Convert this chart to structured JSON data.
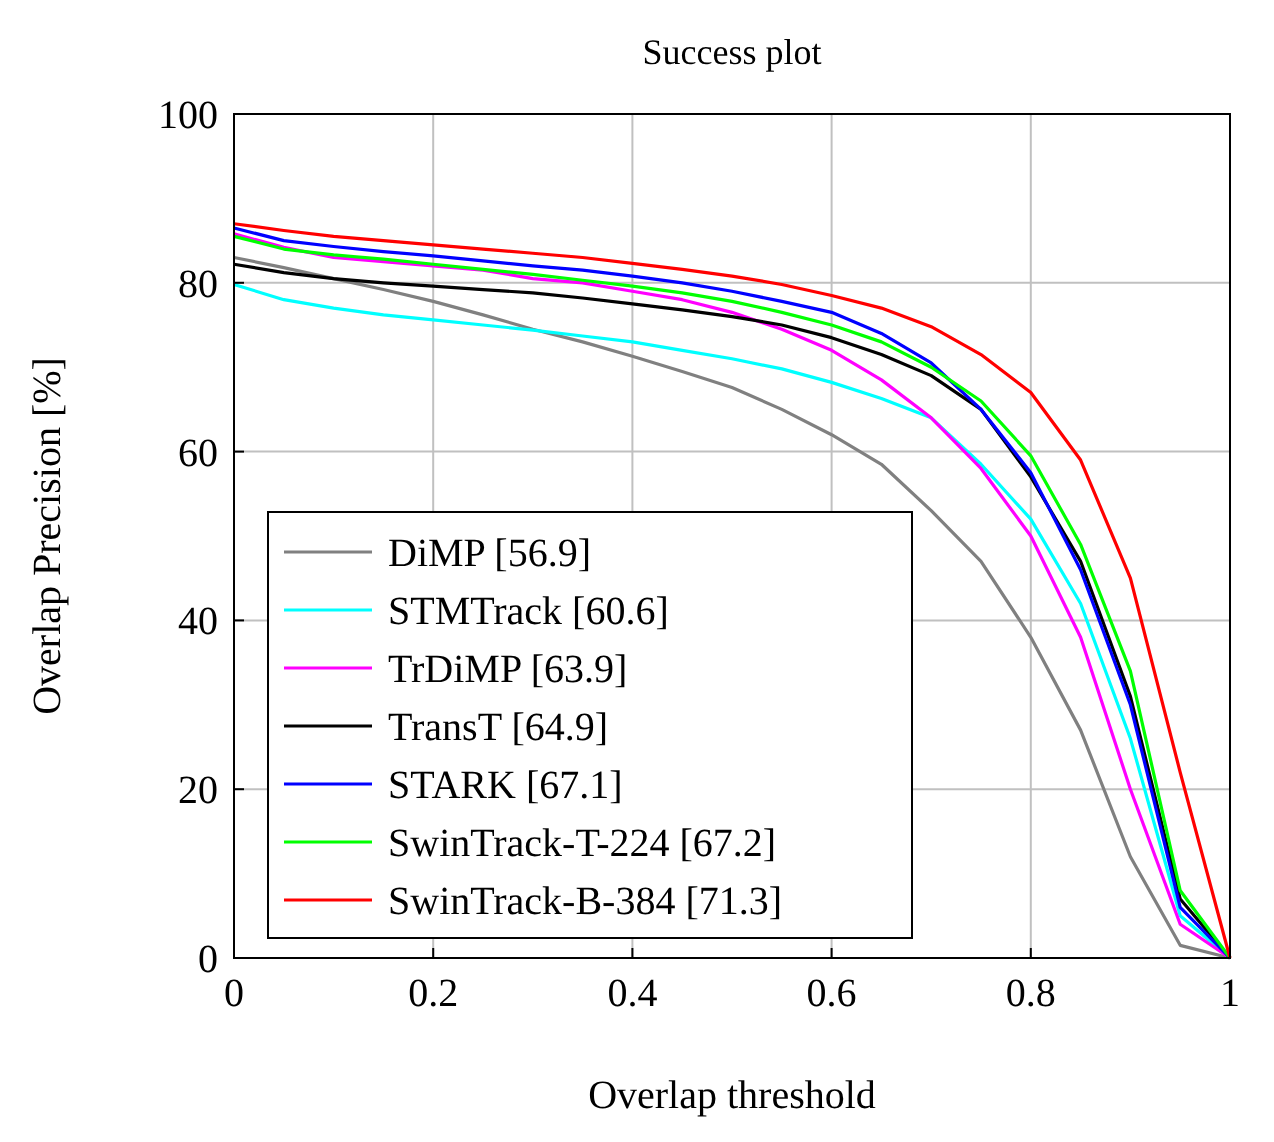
{
  "chart_data": {
    "type": "line",
    "title": "Success plot",
    "xlabel": "Overlap threshold",
    "ylabel": "Overlap Precision [%]",
    "x": [
      0,
      0.05,
      0.1,
      0.15,
      0.2,
      0.25,
      0.3,
      0.35,
      0.4,
      0.45,
      0.5,
      0.55,
      0.6,
      0.65,
      0.7,
      0.75,
      0.8,
      0.85,
      0.9,
      0.95,
      1
    ],
    "xlim": [
      0,
      1
    ],
    "xticks": [
      0,
      0.2,
      0.4,
      0.6,
      0.8,
      1
    ],
    "ylim": [
      0,
      100
    ],
    "yticks": [
      0,
      20,
      40,
      60,
      80,
      100
    ],
    "grid": true,
    "legend": "bottom left",
    "marker": "none",
    "line_style": "solid",
    "series": [
      {
        "name": "DiMP [56.9]",
        "color": "#808080",
        "values": [
          83,
          81.8,
          80.5,
          79.2,
          77.8,
          76.2,
          74.5,
          73,
          71.3,
          69.5,
          67.6,
          65,
          62,
          58.5,
          53,
          47,
          38,
          27,
          12,
          1.5,
          0
        ]
      },
      {
        "name": "STMTrack [60.6]",
        "color": "#00ffff",
        "values": [
          79.8,
          78,
          77,
          76.2,
          75.6,
          75,
          74.4,
          73.7,
          73,
          72,
          71,
          69.8,
          68.2,
          66.3,
          64,
          58.5,
          52,
          42,
          26,
          5,
          0
        ]
      },
      {
        "name": "TrDiMP [63.9]",
        "color": "#ff00ff",
        "values": [
          85.8,
          84.2,
          83,
          82.5,
          82,
          81.5,
          80.5,
          80,
          79,
          78,
          76.5,
          74.5,
          72,
          68.5,
          64,
          58,
          50,
          38,
          20,
          4,
          0
        ]
      },
      {
        "name": "TransT [64.9]",
        "color": "#000000",
        "values": [
          82.2,
          81.2,
          80.5,
          80,
          79.6,
          79.2,
          78.8,
          78.2,
          77.5,
          76.8,
          76,
          75,
          73.5,
          71.5,
          69,
          65,
          57,
          47,
          31,
          7,
          0
        ]
      },
      {
        "name": "STARK [67.1]",
        "color": "#0000ff",
        "values": [
          86.5,
          85,
          84.3,
          83.7,
          83.2,
          82.6,
          82,
          81.5,
          80.8,
          80,
          79,
          77.8,
          76.5,
          74,
          70.5,
          65,
          57.5,
          46,
          30,
          6,
          0
        ]
      },
      {
        "name": "SwinTrack-T-224 [67.2]",
        "color": "#00ff00",
        "values": [
          85.5,
          84,
          83.3,
          82.8,
          82.2,
          81.6,
          81,
          80.3,
          79.6,
          78.8,
          77.8,
          76.5,
          75,
          73,
          70,
          66,
          59.5,
          49,
          34,
          8,
          0
        ]
      },
      {
        "name": "SwinTrack-B-384 [71.3]",
        "color": "#ff0000",
        "values": [
          87,
          86.2,
          85.5,
          85,
          84.5,
          84,
          83.5,
          83,
          82.3,
          81.6,
          80.8,
          79.8,
          78.5,
          77,
          74.8,
          71.5,
          67,
          59,
          45,
          22,
          0
        ]
      }
    ]
  }
}
